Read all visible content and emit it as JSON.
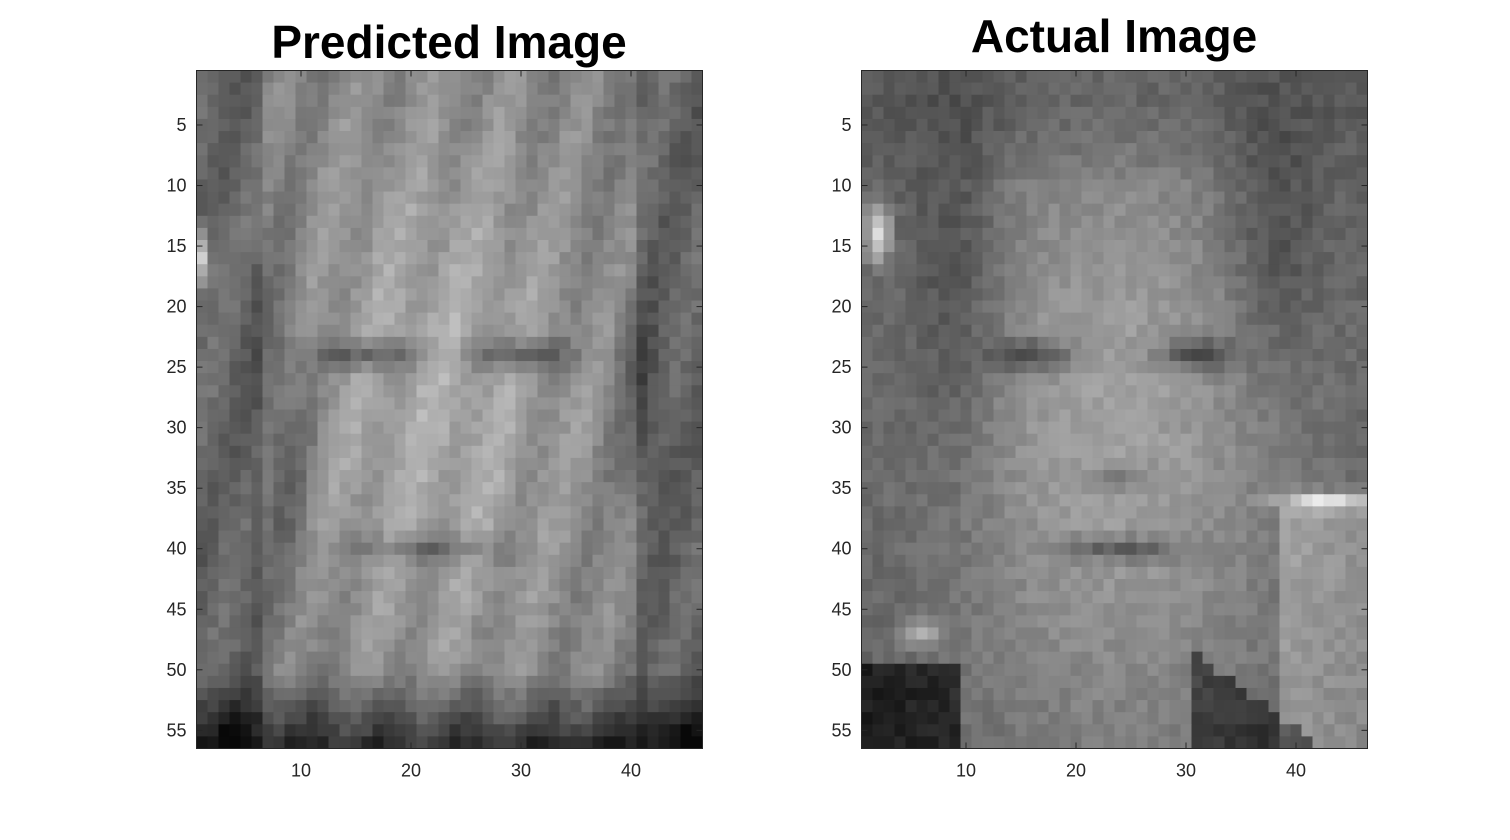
{
  "chart_data": [
    {
      "type": "heatmap",
      "title": "Predicted Image",
      "colormap": "gray",
      "xlim": [
        0.5,
        46.5
      ],
      "ylim": [
        0.5,
        56.5
      ],
      "y_direction": "reverse",
      "xticks": [
        10,
        20,
        30,
        40
      ],
      "yticks": [
        5,
        10,
        15,
        20,
        25,
        30,
        35,
        40,
        45,
        50,
        55
      ],
      "grid": false,
      "image_size": [
        56,
        46
      ]
    },
    {
      "type": "heatmap",
      "title": "Actual Image",
      "colormap": "gray",
      "xlim": [
        0.5,
        46.5
      ],
      "ylim": [
        0.5,
        56.5
      ],
      "y_direction": "reverse",
      "xticks": [
        10,
        20,
        30,
        40
      ],
      "yticks": [
        5,
        10,
        15,
        20,
        25,
        30,
        35,
        40,
        45,
        50,
        55
      ],
      "grid": false,
      "image_size": [
        56,
        46
      ]
    }
  ]
}
